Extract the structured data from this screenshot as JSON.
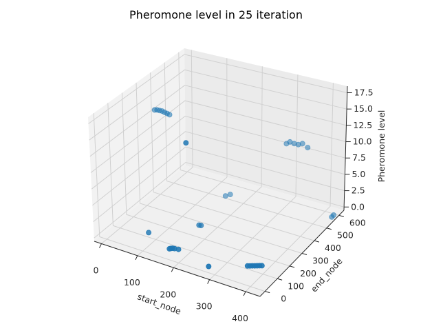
{
  "chart_data": {
    "type": "scatter",
    "title": "Pheromone level in 25 iteration",
    "xlabel": "start_node",
    "ylabel": "end_node",
    "zlabel": "Pheromone level",
    "xlim": [
      -20,
      440
    ],
    "ylim": [
      -40,
      640
    ],
    "zlim": [
      -0.5,
      18.5
    ],
    "xticks": [
      0,
      100,
      200,
      300,
      400
    ],
    "yticks": [
      0,
      100,
      200,
      300,
      400,
      500,
      600
    ],
    "zticks": [
      0.0,
      2.5,
      5.0,
      7.5,
      10.0,
      12.5,
      15.0,
      17.5
    ],
    "grid": true,
    "color": "#1f77b4",
    "points": [
      {
        "x": 5,
        "y": 360,
        "z": 13.6
      },
      {
        "x": 10,
        "y": 365,
        "z": 13.6
      },
      {
        "x": 15,
        "y": 370,
        "z": 13.5
      },
      {
        "x": 20,
        "y": 375,
        "z": 13.4
      },
      {
        "x": 25,
        "y": 380,
        "z": 13.2
      },
      {
        "x": 30,
        "y": 385,
        "z": 13.0
      },
      {
        "x": 35,
        "y": 390,
        "z": 12.8
      },
      {
        "x": 190,
        "y": 100,
        "z": 15.6
      },
      {
        "x": 310,
        "y": 560,
        "z": 9.6
      },
      {
        "x": 320,
        "y": 565,
        "z": 9.4
      },
      {
        "x": 330,
        "y": 570,
        "z": 9.3
      },
      {
        "x": 340,
        "y": 575,
        "z": 9.5
      },
      {
        "x": 355,
        "y": 575,
        "z": 9.1
      },
      {
        "x": 300,
        "y": 560,
        "z": 9.2
      },
      {
        "x": 170,
        "y": 240,
        "z": 0.4
      },
      {
        "x": 175,
        "y": 242,
        "z": 0.4
      },
      {
        "x": 160,
        "y": 470,
        "z": 0.6
      },
      {
        "x": 170,
        "y": 480,
        "z": 0.8
      },
      {
        "x": 80,
        "y": 100,
        "z": 0.2
      },
      {
        "x": 160,
        "y": 40,
        "z": 0.2
      },
      {
        "x": 162,
        "y": 45,
        "z": 0.2
      },
      {
        "x": 165,
        "y": 50,
        "z": 0.2
      },
      {
        "x": 170,
        "y": 52,
        "z": 0.2
      },
      {
        "x": 180,
        "y": 55,
        "z": 0.2
      },
      {
        "x": 360,
        "y": 90,
        "z": 0.2
      },
      {
        "x": 365,
        "y": 95,
        "z": 0.2
      },
      {
        "x": 370,
        "y": 100,
        "z": 0.2
      },
      {
        "x": 375,
        "y": 105,
        "z": 0.2
      },
      {
        "x": 380,
        "y": 110,
        "z": 0.2
      },
      {
        "x": 385,
        "y": 115,
        "z": 0.2
      },
      {
        "x": 390,
        "y": 120,
        "z": 0.2
      },
      {
        "x": 440,
        "y": 540,
        "z": 0.4
      },
      {
        "x": 440,
        "y": 555,
        "z": 0.4
      },
      {
        "x": 280,
        "y": 10,
        "z": 0.2
      }
    ]
  }
}
